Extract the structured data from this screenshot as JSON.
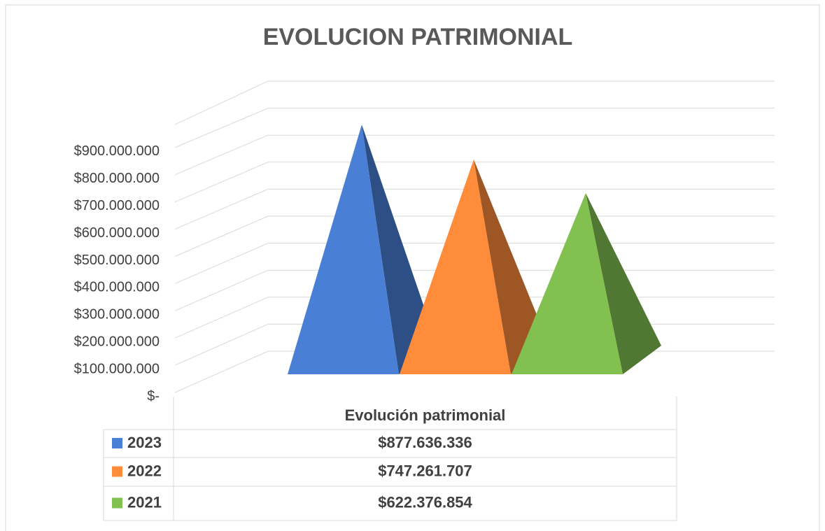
{
  "chart_data": {
    "type": "pyramid",
    "title": "EVOLUCION PATRIMONIAL",
    "categories": [
      "Evolución patrimonial"
    ],
    "series": [
      {
        "name": "2023",
        "color": "#4a7fd6",
        "values": [
          877636336
        ],
        "value_labels": [
          "$877.636.336"
        ]
      },
      {
        "name": "2022",
        "color": "#ff8c3a",
        "values": [
          747261707
        ],
        "value_labels": [
          "$747.261.707"
        ]
      },
      {
        "name": "2021",
        "color": "#82c150",
        "values": [
          622376854
        ],
        "value_labels": [
          "$622.376.854"
        ]
      }
    ],
    "ylim": [
      0,
      1000000000
    ],
    "yticks": [
      {
        "value": 0,
        "label": "$-"
      },
      {
        "value": 100000000,
        "label": "$100.000.000"
      },
      {
        "value": 200000000,
        "label": "$200.000.000"
      },
      {
        "value": 300000000,
        "label": "$300.000.000"
      },
      {
        "value": 400000000,
        "label": "$400.000.000"
      },
      {
        "value": 500000000,
        "label": "$500.000.000"
      },
      {
        "value": 600000000,
        "label": "$600.000.000"
      },
      {
        "value": 700000000,
        "label": "$700.000.000"
      },
      {
        "value": 800000000,
        "label": "$800.000.000"
      },
      {
        "value": 900000000,
        "label": "$900.000.000"
      }
    ],
    "grid": true,
    "data_table": true
  }
}
